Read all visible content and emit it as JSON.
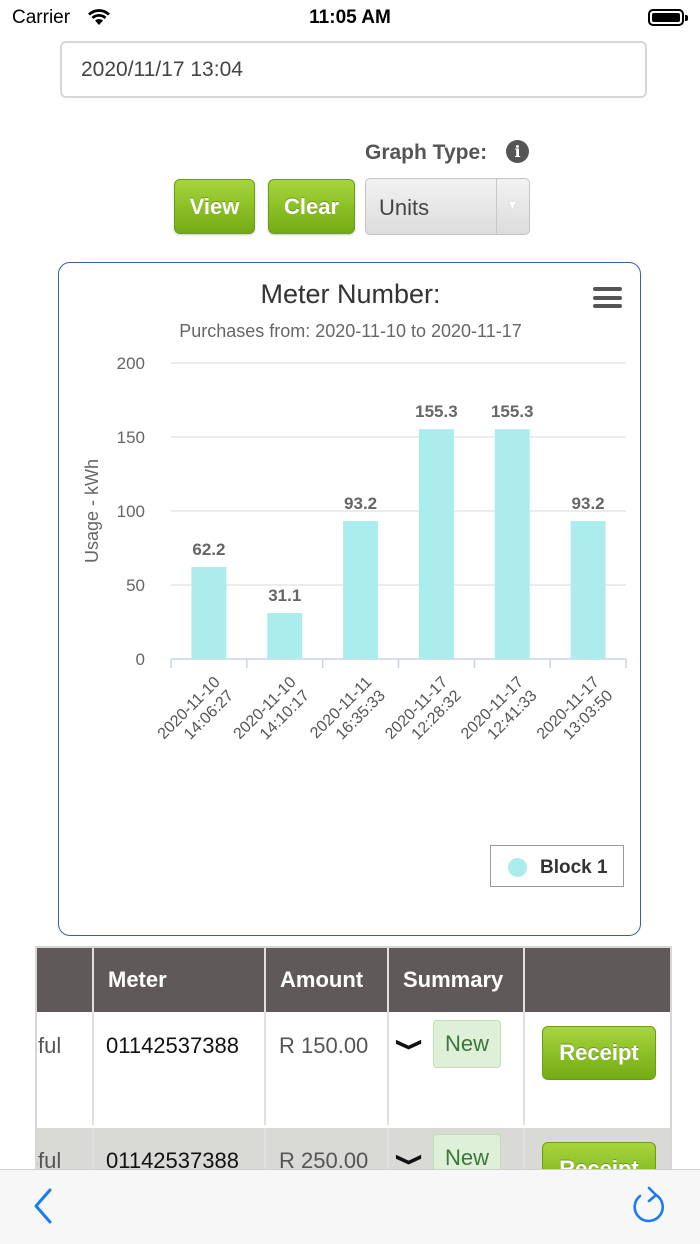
{
  "status_bar": {
    "carrier": "Carrier",
    "time": "11:05 AM"
  },
  "date_input": {
    "value": "2020/11/17 13:04"
  },
  "controls": {
    "graph_type_label": "Graph Type:",
    "info_icon": "info-icon",
    "view_label": "View",
    "clear_label": "Clear",
    "graph_type_value": "Units",
    "accent_color": "#8cc220"
  },
  "chart_data": {
    "type": "bar",
    "title": "Meter Number:",
    "subtitle": "Purchases from: 2020-11-10 to 2020-11-17",
    "ylabel": "Usage - kWh",
    "xlabel": "",
    "ylim": [
      0,
      200
    ],
    "yticks": [
      0,
      50,
      100,
      150,
      200
    ],
    "categories": [
      "2020-11-10 14:06:27",
      "2020-11-10 14:10:17",
      "2020-11-11 16:35:33",
      "2020-11-17 12:28:32",
      "2020-11-17 12:41:33",
      "2020-11-17 13:03:50"
    ],
    "series": [
      {
        "name": "Block 1",
        "color": "#abedec",
        "values": [
          62.2,
          31.1,
          93.2,
          155.3,
          155.3,
          93.2
        ]
      }
    ],
    "value_labels": [
      "62.2",
      "31.1",
      "93.2",
      "155.3",
      "155.3",
      "93.2"
    ],
    "grid": true,
    "legend": "bottom-right"
  },
  "table": {
    "headers": [
      "",
      "Meter",
      "Amount",
      "Summary",
      ""
    ],
    "rows": [
      {
        "status": "sful",
        "meter": "01142537388",
        "amount": "R 150.00",
        "summary": "New",
        "action": "Receipt"
      },
      {
        "status": "sful",
        "meter": "01142537388",
        "amount": "R 250.00",
        "summary": "New",
        "action": "Receipt"
      }
    ]
  },
  "toolbar": {
    "back_icon": "chevron-left-icon",
    "reload_icon": "reload-icon"
  }
}
